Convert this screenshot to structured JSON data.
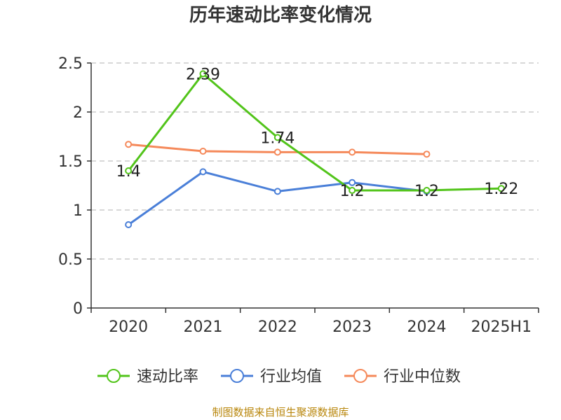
{
  "chart_data": {
    "type": "line",
    "title": "历年速动比率变化情况",
    "categories": [
      "2020",
      "2021",
      "2022",
      "2023",
      "2024",
      "2025H1"
    ],
    "ylim": [
      0,
      2.5
    ],
    "yticks": [
      "0",
      "0.5",
      "1",
      "1.5",
      "2",
      "2.5"
    ],
    "grid": true,
    "legend_position": "bottom",
    "series": [
      {
        "name": "速动比率",
        "color": "#52c41a",
        "values": [
          1.4,
          2.39,
          1.74,
          1.2,
          1.2,
          1.22
        ],
        "labels": [
          "1.4",
          "2.39",
          "1.74",
          "1.2",
          "1.2",
          "1.22"
        ]
      },
      {
        "name": "行业均值",
        "color": "#4a7fd8",
        "values": [
          0.85,
          1.39,
          1.19,
          1.28,
          1.19,
          null
        ]
      },
      {
        "name": "行业中位数",
        "color": "#f5895a",
        "values": [
          1.67,
          1.6,
          1.59,
          1.59,
          1.57,
          null
        ]
      }
    ]
  },
  "source": "制图数据来自恒生聚源数据库"
}
